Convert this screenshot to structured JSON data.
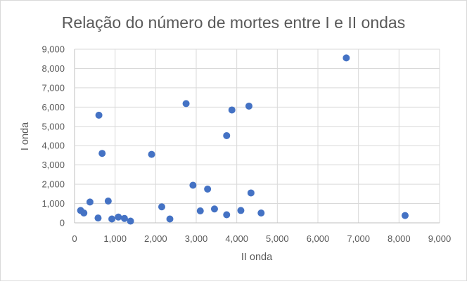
{
  "chart_data": {
    "type": "scatter",
    "title": "Relação do número de mortes entre I e II ondas",
    "xlabel": "II onda",
    "ylabel": "I onda",
    "xlim": [
      0,
      9000
    ],
    "ylim": [
      0,
      9000
    ],
    "x_ticks": [
      "0",
      "1,000",
      "2,000",
      "3,000",
      "4,000",
      "5,000",
      "6,000",
      "7,000",
      "8,000",
      "9,000"
    ],
    "y_ticks": [
      "0",
      "1,000",
      "2,000",
      "3,000",
      "4,000",
      "5,000",
      "6,000",
      "7,000",
      "8,000",
      "9,000"
    ],
    "grid": "vertical and horizontal major gridlines",
    "marker_color": "#4472c4",
    "series": [
      {
        "points": [
          [
            6700,
            8550
          ],
          [
            2750,
            6180
          ],
          [
            4300,
            6050
          ],
          [
            3880,
            5850
          ],
          [
            600,
            5580
          ],
          [
            3750,
            4520
          ],
          [
            680,
            3600
          ],
          [
            1900,
            3550
          ],
          [
            2920,
            1950
          ],
          [
            3280,
            1750
          ],
          [
            4350,
            1550
          ],
          [
            380,
            1080
          ],
          [
            830,
            1130
          ],
          [
            2150,
            830
          ],
          [
            3450,
            720
          ],
          [
            3100,
            620
          ],
          [
            4100,
            640
          ],
          [
            150,
            640
          ],
          [
            230,
            510
          ],
          [
            4600,
            510
          ],
          [
            3750,
            420
          ],
          [
            8150,
            380
          ],
          [
            1080,
            300
          ],
          [
            580,
            250
          ],
          [
            920,
            200
          ],
          [
            1230,
            230
          ],
          [
            2350,
            200
          ],
          [
            1380,
            90
          ]
        ]
      }
    ]
  }
}
